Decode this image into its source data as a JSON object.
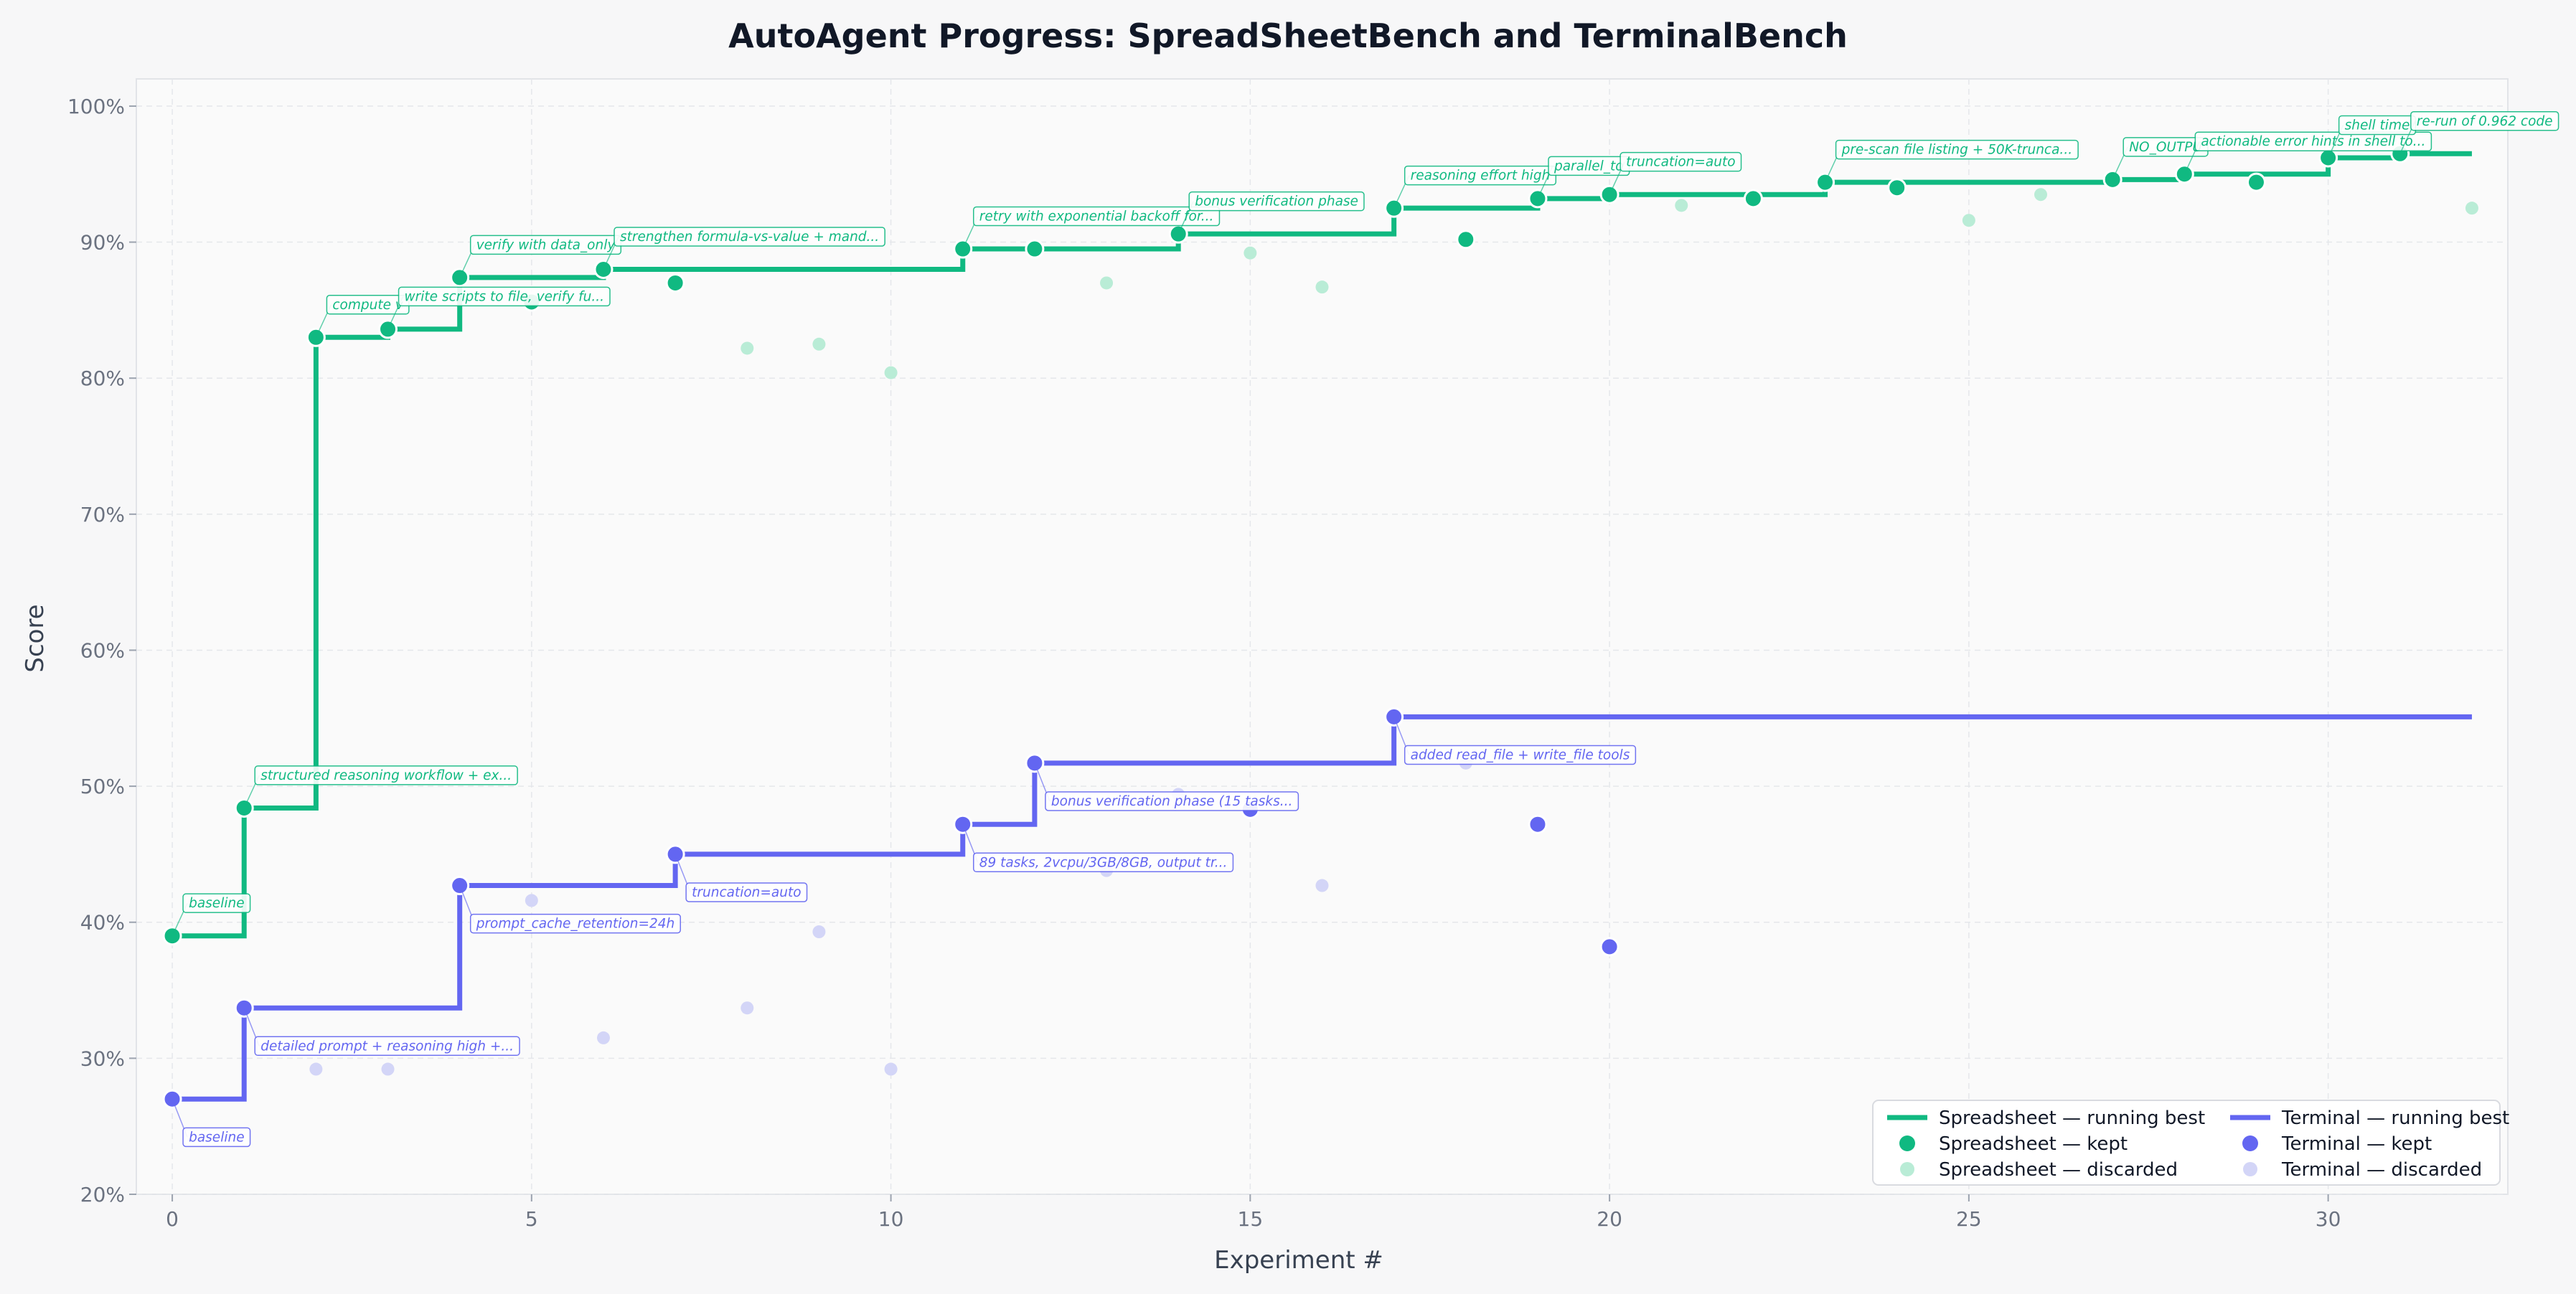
{
  "chart_data": {
    "type": "line",
    "title": "AutoAgent Progress: SpreadSheetBench and TerminalBench",
    "xlabel": "Experiment #",
    "ylabel": "Score",
    "xlim": [
      -0.5,
      32.5
    ],
    "ylim": [
      20,
      102
    ],
    "x_ticks": [
      0,
      5,
      10,
      15,
      20,
      25,
      30
    ],
    "y_ticks": [
      20,
      30,
      40,
      50,
      60,
      70,
      80,
      90,
      100
    ],
    "y_tick_format": "percent",
    "grid": true,
    "legend_position": "lower right",
    "colors": {
      "spreadsheet": "#10b981",
      "spreadsheet_discarded": "#b9ecd6",
      "terminal": "#6366f1",
      "terminal_discarded": "#d3d5f7"
    },
    "legend": [
      {
        "label": "Spreadsheet — running best",
        "kind": "line",
        "color": "#10b981"
      },
      {
        "label": "Terminal — running best",
        "kind": "line",
        "color": "#6366f1"
      },
      {
        "label": "Spreadsheet — kept",
        "kind": "dot",
        "color": "#10b981"
      },
      {
        "label": "Terminal — kept",
        "kind": "dot",
        "color": "#6366f1"
      },
      {
        "label": "Spreadsheet — discarded",
        "kind": "faint-dot",
        "color": "#b9ecd6"
      },
      {
        "label": "Terminal — discarded",
        "kind": "faint-dot",
        "color": "#d3d5f7"
      }
    ],
    "series": [
      {
        "name": "Spreadsheet — running best",
        "kind": "step",
        "color": "#10b981",
        "x": [
          0,
          1,
          2,
          3,
          4,
          5,
          6,
          7,
          8,
          9,
          10,
          11,
          12,
          13,
          14,
          15,
          16,
          17,
          18,
          19,
          20,
          21,
          22,
          23,
          24,
          25,
          26,
          27,
          28,
          29,
          30,
          31,
          32
        ],
        "y": [
          39.0,
          48.4,
          83.0,
          83.6,
          87.4,
          87.4,
          88.0,
          88.0,
          88.0,
          88.0,
          88.0,
          89.5,
          89.5,
          89.5,
          90.6,
          90.6,
          90.6,
          92.5,
          92.5,
          93.2,
          93.5,
          93.5,
          93.5,
          94.4,
          94.4,
          94.4,
          94.4,
          94.6,
          95.0,
          95.0,
          96.2,
          96.5,
          96.5
        ]
      },
      {
        "name": "Terminal — running best",
        "kind": "step",
        "color": "#6366f1",
        "x": [
          0,
          1,
          2,
          3,
          4,
          5,
          6,
          7,
          8,
          9,
          10,
          11,
          12,
          13,
          14,
          15,
          16,
          17,
          18,
          19,
          20,
          21,
          22,
          23,
          24,
          25,
          26,
          27,
          28,
          29,
          30,
          31,
          32
        ],
        "y": [
          27.0,
          33.7,
          33.7,
          33.7,
          42.7,
          42.7,
          42.7,
          45.0,
          45.0,
          45.0,
          45.0,
          47.2,
          51.7,
          51.7,
          51.7,
          51.7,
          51.7,
          55.1,
          55.1,
          55.1,
          55.1,
          55.1,
          55.1,
          55.1,
          55.1,
          55.1,
          55.1,
          55.1,
          55.1,
          55.1,
          55.1,
          55.1,
          55.1
        ]
      },
      {
        "name": "Spreadsheet — kept",
        "kind": "dot",
        "color": "#10b981",
        "x": [
          0,
          1,
          2,
          3,
          4,
          5,
          6,
          7,
          11,
          12,
          14,
          17,
          18,
          19,
          20,
          22,
          23,
          24,
          27,
          28,
          29,
          30,
          31
        ],
        "y": [
          39.0,
          48.4,
          83.0,
          83.6,
          87.4,
          85.6,
          88.0,
          87.0,
          89.5,
          89.5,
          90.6,
          92.5,
          90.2,
          93.2,
          93.5,
          93.2,
          94.4,
          94.0,
          94.6,
          95.0,
          94.4,
          96.2,
          96.5
        ]
      },
      {
        "name": "Spreadsheet — discarded",
        "kind": "faint-dot",
        "color": "#b9ecd6",
        "x": [
          8,
          9,
          10,
          13,
          15,
          16,
          21,
          25,
          26,
          32
        ],
        "y": [
          82.2,
          82.5,
          80.4,
          87.0,
          89.2,
          86.7,
          92.7,
          91.6,
          93.5,
          92.5
        ]
      },
      {
        "name": "Terminal — kept",
        "kind": "dot",
        "color": "#6366f1",
        "x": [
          0,
          1,
          4,
          7,
          11,
          12,
          15,
          17,
          19,
          20
        ],
        "y": [
          27.0,
          33.7,
          42.7,
          45.0,
          47.2,
          51.7,
          48.3,
          55.1,
          47.2,
          38.2
        ]
      },
      {
        "name": "Terminal — discarded",
        "kind": "faint-dot",
        "color": "#d3d5f7",
        "x": [
          2,
          3,
          5,
          6,
          8,
          9,
          10,
          13,
          14,
          16,
          18
        ],
        "y": [
          29.2,
          29.2,
          41.6,
          31.5,
          33.7,
          39.3,
          29.2,
          43.8,
          49.4,
          42.7,
          51.7
        ]
      }
    ],
    "annotations": [
      {
        "series": "spreadsheet",
        "x": 0,
        "y": 39.0,
        "text": "baseline",
        "dx": 0.15,
        "dy": 2.4
      },
      {
        "series": "spreadsheet",
        "x": 1,
        "y": 48.4,
        "text": "structured reasoning workflow + ex...",
        "dx": 0.15,
        "dy": 2.4
      },
      {
        "series": "spreadsheet",
        "x": 2,
        "y": 83.0,
        "text": "compute v",
        "dx": 0.15,
        "dy": 2.4
      },
      {
        "series": "spreadsheet",
        "x": 3,
        "y": 83.6,
        "text": "write scripts to file, verify fu...",
        "dx": 0.15,
        "dy": 2.4
      },
      {
        "series": "spreadsheet",
        "x": 4,
        "y": 87.4,
        "text": "verify with data_only",
        "dx": 0.15,
        "dy": 2.4
      },
      {
        "series": "spreadsheet",
        "x": 6,
        "y": 88.0,
        "text": "strengthen formula-vs-value + mand...",
        "dx": 0.15,
        "dy": 2.4
      },
      {
        "series": "spreadsheet",
        "x": 11,
        "y": 89.5,
        "text": "retry with exponential backoff for...",
        "dx": 0.15,
        "dy": 2.4
      },
      {
        "series": "spreadsheet",
        "x": 14,
        "y": 90.6,
        "text": "bonus verification phase",
        "dx": 0.15,
        "dy": 2.4
      },
      {
        "series": "spreadsheet",
        "x": 17,
        "y": 92.5,
        "text": "reasoning effort high",
        "dx": 0.15,
        "dy": 2.4
      },
      {
        "series": "spreadsheet",
        "x": 19,
        "y": 93.2,
        "text": "parallel_to",
        "dx": 0.15,
        "dy": 2.4
      },
      {
        "series": "spreadsheet",
        "x": 20,
        "y": 93.5,
        "text": "truncation=auto",
        "dx": 0.15,
        "dy": 2.4
      },
      {
        "series": "spreadsheet",
        "x": 23,
        "y": 94.4,
        "text": "pre-scan file listing + 50K-trunca...",
        "dx": 0.15,
        "dy": 2.4
      },
      {
        "series": "spreadsheet",
        "x": 27,
        "y": 94.6,
        "text": "NO_OUTPU",
        "dx": 0.15,
        "dy": 2.4
      },
      {
        "series": "spreadsheet",
        "x": 28,
        "y": 95.0,
        "text": "actionable error hints in shell to...",
        "dx": 0.15,
        "dy": 2.4
      },
      {
        "series": "spreadsheet",
        "x": 30,
        "y": 96.2,
        "text": "shell time",
        "dx": 0.15,
        "dy": 2.4
      },
      {
        "series": "spreadsheet",
        "x": 31,
        "y": 96.5,
        "text": "re-run of 0.962 code",
        "dx": 0.15,
        "dy": 2.4
      },
      {
        "series": "terminal",
        "x": 0,
        "y": 27.0,
        "text": "baseline",
        "dx": 0.15,
        "dy": -2.8
      },
      {
        "series": "terminal",
        "x": 1,
        "y": 33.7,
        "text": "detailed prompt + reasoning high +...",
        "dx": 0.15,
        "dy": -2.8
      },
      {
        "series": "terminal",
        "x": 4,
        "y": 42.7,
        "text": "prompt_cache_retention=24h",
        "dx": 0.15,
        "dy": -2.8
      },
      {
        "series": "terminal",
        "x": 7,
        "y": 45.0,
        "text": "truncation=auto",
        "dx": 0.15,
        "dy": -2.8
      },
      {
        "series": "terminal",
        "x": 11,
        "y": 47.2,
        "text": "89 tasks, 2vcpu/3GB/8GB, output tr...",
        "dx": 0.15,
        "dy": -2.8
      },
      {
        "series": "terminal",
        "x": 12,
        "y": 51.7,
        "text": "bonus verification phase (15 tasks...",
        "dx": 0.15,
        "dy": -2.8
      },
      {
        "series": "terminal",
        "x": 17,
        "y": 55.1,
        "text": "added read_file + write_file tools",
        "dx": 0.15,
        "dy": -2.8
      }
    ]
  }
}
